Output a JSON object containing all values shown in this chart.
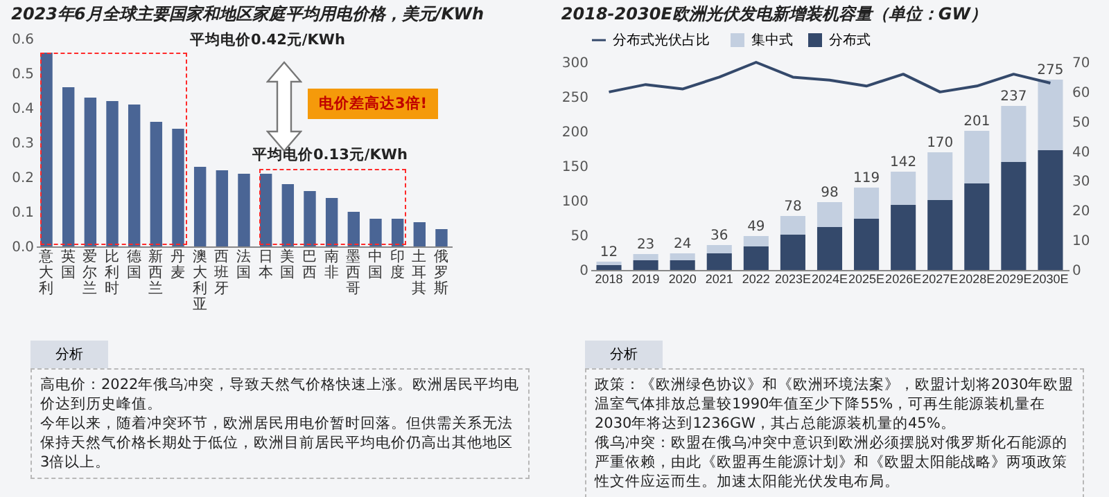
{
  "chart_data": [
    {
      "type": "bar",
      "title": "2023年6月全球主要国家和地区家庭平均用电价格，美元/KWh",
      "categories": [
        "意大利",
        "英国",
        "爱尔兰",
        "比利时",
        "德国",
        "新西兰",
        "丹麦",
        "澳大利亚",
        "西班牙",
        "法国",
        "日本",
        "美国",
        "巴西",
        "南非",
        "墨西哥",
        "中国",
        "印度",
        "土耳其",
        "俄罗斯"
      ],
      "values": [
        0.56,
        0.46,
        0.43,
        0.42,
        0.41,
        0.36,
        0.34,
        0.23,
        0.22,
        0.21,
        0.21,
        0.18,
        0.16,
        0.14,
        0.1,
        0.08,
        0.08,
        0.07,
        0.05
      ],
      "color": "#4a6595",
      "ylim": [
        0,
        0.6
      ],
      "yticks": [
        {
          "value": 0,
          "label": "0.0"
        },
        0.1,
        0.2,
        0.3,
        0.4,
        0.5,
        0.6
      ],
      "annotations": [
        "平均电价0.42元/KWh",
        "电价差高达3倍!",
        "平均电价0.13元/KWh",
        "分析",
        "高电价：2022年俄乌冲突，导致天然气价格快速上涨。欧洲居民平均电价达到历史峰值。",
        "今年以来，随着冲突环节，欧洲居民用电价暂时回落。但供需关系无法保持天然气价格长期处于低位，欧洲目前居民平均电价仍高出其他地区3倍以上。"
      ]
    },
    {
      "type": "bar",
      "title": "2018-2030E欧洲光伏发电新增装机容量（单位：GW）",
      "categories": [
        "2018",
        "2019",
        "2020",
        "2021",
        "2022",
        "2023E",
        "2024E",
        "2025E",
        "2026E",
        "2027E",
        "2028E",
        "2029E",
        "2030E"
      ],
      "stacked": true,
      "series": [
        {
          "name": "分布式光伏占比",
          "type": "line",
          "axis": "y2",
          "color": "#34496b",
          "values": [
            60,
            62.5,
            61,
            65,
            70,
            65,
            64,
            62,
            66,
            60,
            62,
            66,
            63
          ]
        },
        {
          "name": "分布式",
          "color": "#34496b",
          "values": [
            7,
            14,
            14,
            24,
            34,
            51,
            62,
            74,
            94,
            101,
            125,
            156,
            173
          ]
        },
        {
          "name": "集中式",
          "color": "#c3cfe0",
          "values": [
            5,
            9,
            10,
            12,
            15,
            27,
            36,
            45,
            48,
            69,
            76,
            81,
            102
          ]
        }
      ],
      "totals": [
        "12",
        "23",
        "24",
        "36",
        "49",
        "78",
        "98",
        "119",
        "142",
        "170",
        "201",
        "237",
        "275"
      ],
      "ylim": [
        0,
        300
      ],
      "yticks": [
        0,
        50,
        100,
        150,
        200,
        250,
        300
      ],
      "y2lim": [
        0,
        70
      ],
      "y2ticks": [
        0,
        10,
        20,
        30,
        40,
        50,
        60,
        70
      ],
      "marker": "none",
      "legend": "top left",
      "annotations": [
        "分析",
        "政策：《欧洲绿色协议》和《欧洲环境法案》，欧盟计划将2030年欧盟温室气体排放总量较1990年值至少下降55%，可再生能源装机量在2030年将达到1236GW，其占总能源装机量的45%。",
        "俄乌冲突：欧盟在俄乌冲突中意识到欧洲必须摆脱对俄罗斯化石能源的严重依赖，由此《欧盟再生能源计划》和《欧盟太阳能战略》两项政策性文件应运而生。加速太阳能光伏发电布局。"
      ]
    }
  ]
}
